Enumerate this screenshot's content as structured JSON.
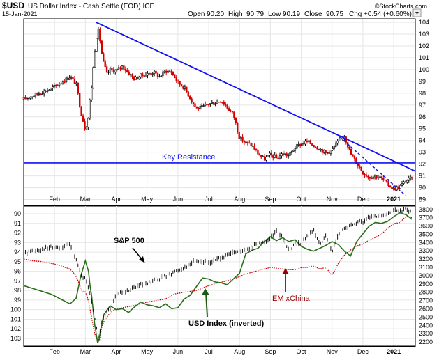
{
  "chart_data": [
    {
      "type": "line",
      "panel": "top",
      "title": "$USD",
      "subtitle": "US Dollar Index - Cash Settle (EOD) ICE",
      "date_label": "15-Jan-2021",
      "quote": {
        "open_label": "Open",
        "open": "90.20",
        "high_label": "High",
        "high": "90.79",
        "low_label": "Low",
        "low": "90.19",
        "close_label": "Close",
        "close": "90.75",
        "chg_label": "Chg",
        "chg": "+0.54 (+0.60%)"
      },
      "credit": "©StockCharts.com",
      "xlabel": "",
      "ylabel": "",
      "ylim": [
        88.5,
        104.3
      ],
      "y_ticks": [
        "89",
        "90",
        "91",
        "92",
        "93",
        "94",
        "95",
        "96",
        "97",
        "98",
        "99",
        "100",
        "101",
        "102",
        "103",
        "104"
      ],
      "x_months": [
        "Feb",
        "Mar",
        "Apr",
        "May",
        "Jun",
        "Jul",
        "Aug",
        "Sep",
        "Oct",
        "Nov",
        "Dec",
        "2021"
      ],
      "x_month_index": [
        1,
        2,
        3,
        4,
        5,
        6,
        7,
        8,
        9,
        10,
        11,
        12
      ],
      "x_range": [
        0,
        12.7
      ],
      "series": [
        {
          "name": "$USD",
          "color": "#000000",
          "t": [
            0.0,
            0.3,
            0.6,
            0.9,
            1.2,
            1.5,
            1.7,
            1.85,
            2.0,
            2.1,
            2.15,
            2.2,
            2.3,
            2.4,
            2.45,
            2.5,
            2.55,
            2.6,
            2.7,
            2.8,
            3.0,
            3.2,
            3.4,
            3.6,
            3.8,
            4.0,
            4.2,
            4.4,
            4.6,
            4.8,
            5.0,
            5.2,
            5.4,
            5.6,
            5.8,
            6.0,
            6.2,
            6.4,
            6.6,
            6.8,
            7.0,
            7.2,
            7.4,
            7.6,
            7.8,
            8.0,
            8.2,
            8.4,
            8.6,
            8.8,
            9.0,
            9.2,
            9.4,
            9.6,
            9.8,
            10.0,
            10.2,
            10.4,
            10.6,
            10.8,
            11.0,
            11.2,
            11.4,
            11.6,
            11.8,
            12.0,
            12.2,
            12.4,
            12.6
          ],
          "values": [
            97.5,
            97.8,
            98.1,
            98.4,
            98.9,
            99.4,
            98.8,
            96.5,
            94.9,
            96.0,
            97.5,
            98.5,
            101.5,
            103.5,
            103.0,
            102.0,
            101.0,
            100.5,
            99.6,
            100.0,
            99.9,
            100.3,
            99.7,
            99.2,
            99.5,
            99.6,
            99.8,
            99.4,
            99.9,
            99.8,
            98.9,
            98.5,
            97.6,
            96.7,
            96.8,
            97.1,
            97.2,
            97.4,
            96.8,
            96.2,
            94.2,
            93.8,
            93.6,
            92.9,
            92.4,
            92.8,
            92.5,
            92.9,
            92.7,
            93.4,
            93.7,
            93.9,
            93.6,
            93.3,
            92.9,
            93.2,
            93.9,
            94.4,
            92.9,
            92.1,
            91.3,
            90.9,
            91.0,
            90.8,
            90.3,
            89.9,
            90.1,
            90.6,
            90.8
          ]
        }
      ],
      "annotations": [
        {
          "type": "trendline",
          "name": "downtrend-resistance",
          "color": "#1010f0",
          "points": [
            [
              2.35,
              104.0
            ],
            [
              12.7,
              91.4
            ]
          ]
        },
        {
          "type": "hline",
          "name": "key-resistance",
          "color": "#1010f0",
          "y": 92.1,
          "label": "Key Resistance"
        },
        {
          "type": "dashed-trendline",
          "name": "short-downtrend",
          "color": "#1010f0",
          "points": [
            [
              10.25,
              94.3
            ],
            [
              12.4,
              89.3
            ]
          ]
        }
      ]
    },
    {
      "type": "line",
      "panel": "bottom",
      "xlabel": "",
      "ylabel": "",
      "left_axis_label": "USD Index (inverted)",
      "left_ylim": [
        89.2,
        103.8
      ],
      "left_y_ticks": [
        "90",
        "91",
        "92",
        "93",
        "94",
        "95",
        "96",
        "97",
        "98",
        "99",
        "100",
        "101",
        "102",
        "103"
      ],
      "right_ylim": [
        2150,
        3840
      ],
      "right_y_ticks": [
        "2200",
        "2300",
        "2400",
        "2500",
        "2600",
        "2700",
        "2800",
        "2900",
        "3000",
        "3100",
        "3200",
        "3300",
        "3400",
        "3500",
        "3600",
        "3700",
        "3800"
      ],
      "x_months": [
        "Feb",
        "Mar",
        "Apr",
        "May",
        "Jun",
        "Jul",
        "Aug",
        "Sep",
        "Oct",
        "Nov",
        "Dec",
        "2021"
      ],
      "x_month_index": [
        1,
        2,
        3,
        4,
        5,
        6,
        7,
        8,
        9,
        10,
        11,
        12
      ],
      "x_range": [
        0,
        12.7
      ],
      "series": [
        {
          "name": "S&P 500",
          "color": "#000000",
          "t": [
            0.0,
            0.3,
            0.6,
            0.9,
            1.2,
            1.5,
            1.7,
            1.9,
            2.0,
            2.1,
            2.2,
            2.3,
            2.4,
            2.45,
            2.5,
            2.6,
            2.8,
            3.0,
            3.3,
            3.6,
            4.0,
            4.3,
            4.6,
            4.9,
            5.2,
            5.6,
            6.0,
            6.4,
            6.8,
            7.2,
            7.6,
            8.0,
            8.2,
            8.4,
            8.6,
            8.8,
            9.0,
            9.2,
            9.4,
            9.6,
            9.8,
            10.0,
            10.2,
            10.4,
            10.6,
            10.8,
            11.0,
            11.2,
            11.4,
            11.6,
            11.8,
            12.0,
            12.2,
            12.4,
            12.6
          ],
          "values": [
            3280,
            3300,
            3320,
            3340,
            3330,
            3380,
            3200,
            2960,
            2980,
            2850,
            2700,
            2500,
            2300,
            2240,
            2400,
            2500,
            2600,
            2780,
            2800,
            2860,
            2900,
            2950,
            3000,
            3050,
            3100,
            3190,
            3150,
            3220,
            3280,
            3300,
            3380,
            3450,
            3560,
            3450,
            3310,
            3380,
            3390,
            3470,
            3540,
            3380,
            3480,
            3300,
            3480,
            3570,
            3600,
            3640,
            3660,
            3700,
            3710,
            3730,
            3750,
            3800,
            3780,
            3800,
            3770
          ]
        },
        {
          "name": "EM xChina",
          "color": "#cc0000",
          "style": "dotted",
          "t": [
            0.0,
            0.3,
            0.6,
            0.9,
            1.2,
            1.5,
            1.7,
            1.9,
            2.0,
            2.1,
            2.2,
            2.3,
            2.4,
            2.45,
            2.5,
            2.6,
            2.8,
            3.0,
            3.3,
            3.6,
            4.0,
            4.3,
            4.6,
            4.9,
            5.2,
            5.6,
            6.0,
            6.4,
            6.8,
            7.2,
            7.6,
            8.0,
            8.4,
            8.8,
            9.0,
            9.2,
            9.4,
            9.6,
            9.8,
            10.0,
            10.2,
            10.4,
            10.6,
            10.8,
            11.0,
            11.2,
            11.4,
            11.6,
            11.8,
            12.0,
            12.2,
            12.4,
            12.6
          ],
          "values": [
            3200,
            3180,
            3170,
            3150,
            3120,
            3080,
            3000,
            2800,
            2820,
            2700,
            2500,
            2300,
            2210,
            2200,
            2350,
            2450,
            2550,
            2600,
            2620,
            2640,
            2680,
            2700,
            2720,
            2780,
            2800,
            2820,
            2880,
            2920,
            2960,
            3020,
            3060,
            3100,
            3080,
            3070,
            3100,
            3100,
            3120,
            3080,
            3100,
            3000,
            3150,
            3250,
            3310,
            3360,
            3380,
            3430,
            3460,
            3500,
            3570,
            3630,
            3640,
            3720,
            3700
          ]
        },
        {
          "name": "USD Index (inverted)",
          "color": "#2a6e1a",
          "axis": "left",
          "t": [
            0.0,
            0.3,
            0.6,
            0.9,
            1.2,
            1.5,
            1.7,
            1.85,
            2.0,
            2.1,
            2.15,
            2.2,
            2.3,
            2.4,
            2.45,
            2.5,
            2.6,
            2.8,
            3.0,
            3.2,
            3.4,
            3.6,
            3.8,
            4.0,
            4.2,
            4.4,
            4.6,
            4.8,
            5.0,
            5.2,
            5.4,
            5.6,
            5.8,
            6.0,
            6.2,
            6.4,
            6.6,
            6.8,
            7.0,
            7.2,
            7.4,
            7.6,
            7.8,
            8.0,
            8.2,
            8.4,
            8.6,
            8.8,
            9.0,
            9.2,
            9.4,
            9.6,
            9.8,
            10.0,
            10.2,
            10.4,
            10.6,
            10.8,
            11.0,
            11.2,
            11.4,
            11.6,
            11.8,
            12.0,
            12.2,
            12.4,
            12.6
          ],
          "values": [
            97.5,
            97.8,
            98.1,
            98.4,
            98.9,
            99.4,
            98.8,
            96.5,
            94.9,
            96.0,
            97.5,
            98.5,
            101.5,
            103.5,
            103.0,
            102.0,
            100.5,
            99.6,
            100.0,
            99.9,
            100.3,
            99.7,
            99.2,
            99.5,
            99.6,
            99.8,
            99.4,
            99.9,
            99.8,
            98.9,
            98.5,
            97.6,
            96.7,
            96.8,
            97.1,
            97.2,
            97.4,
            96.8,
            96.2,
            94.2,
            93.8,
            93.6,
            92.9,
            92.4,
            92.8,
            92.5,
            92.9,
            92.7,
            93.4,
            93.7,
            93.9,
            93.6,
            93.3,
            92.9,
            93.2,
            93.9,
            94.4,
            92.9,
            92.1,
            91.3,
            90.9,
            91.0,
            90.8,
            90.3,
            89.9,
            90.1,
            90.6
          ]
        }
      ],
      "annotations": [
        {
          "name": "sp500-label",
          "text": "S&P 500",
          "color": "#000000"
        },
        {
          "name": "em-xchina-label",
          "text": "EM xChina",
          "color": "#990000"
        },
        {
          "name": "usd-inverted-label",
          "text": "USD Index (inverted)",
          "color": "#000000"
        }
      ]
    }
  ]
}
